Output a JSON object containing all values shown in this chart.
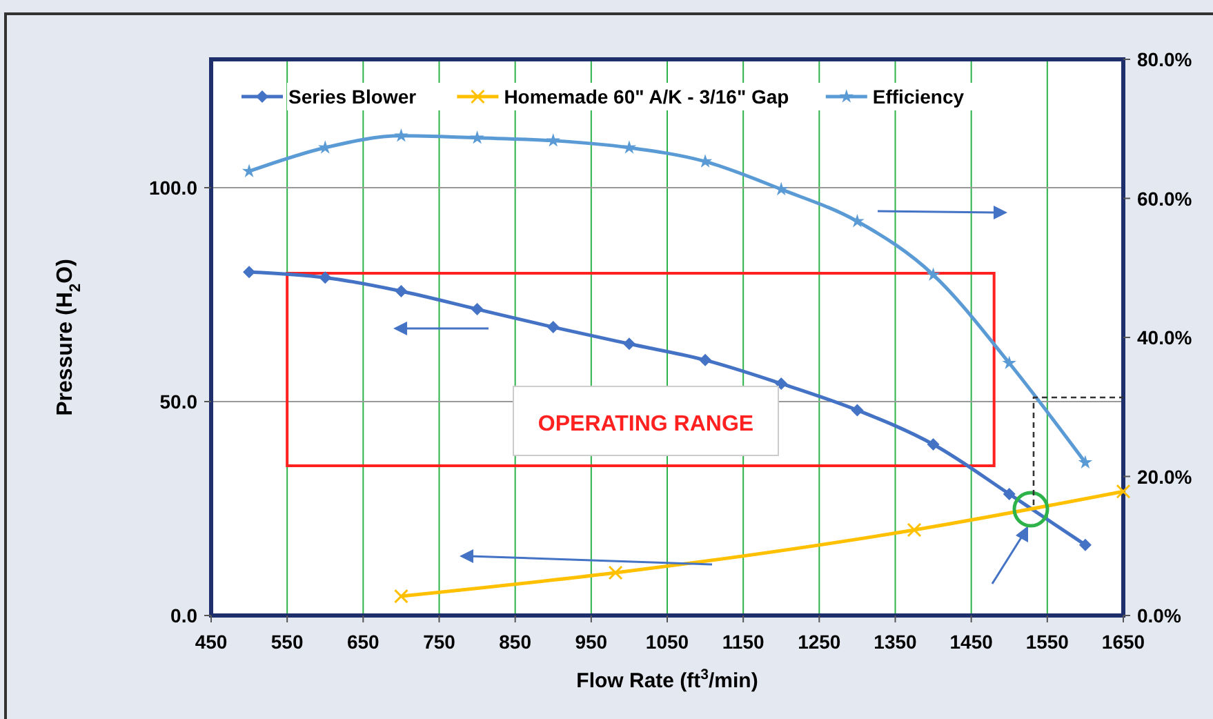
{
  "chart_data": {
    "type": "line",
    "xlabel": "Flow Rate (ft$^{3}$/min)",
    "ylabel": "Pressure (H$_{2}$O)",
    "xlim": [
      450,
      1650
    ],
    "xticks": [
      450,
      550,
      650,
      750,
      850,
      950,
      1050,
      1150,
      1250,
      1350,
      1450,
      1550,
      1650
    ],
    "ylim": [
      0,
      130
    ],
    "yticks": [
      {
        "value": 0,
        "label": "0.0"
      },
      {
        "value": 50,
        "label": "50.0"
      },
      {
        "value": 100,
        "label": "100.0"
      }
    ],
    "y2lim": [
      0,
      80
    ],
    "y2ticks": [
      {
        "value": 0,
        "label": "0.0%"
      },
      {
        "value": 20,
        "label": "20.0%"
      },
      {
        "value": 40,
        "label": "40.0%"
      },
      {
        "value": 60,
        "label": "60.0%"
      },
      {
        "value": 80,
        "label": "80.0%"
      }
    ],
    "grid": true,
    "legend": "top",
    "line_style": "solid",
    "annotations": [
      "OPERATING RANGE"
    ],
    "series": [
      {
        "name": "Series Blower",
        "color": "#4472c4",
        "marker": "diamond",
        "x": [
          500,
          600,
          700,
          800,
          900,
          1000,
          1100,
          1200,
          1300,
          1400,
          1500,
          1600
        ],
        "values": [
          80.3,
          79,
          75.8,
          71.6,
          67.4,
          63.5,
          59.7,
          54.2,
          48,
          40,
          28.4,
          16.5
        ]
      },
      {
        "name": "Homemade 60\" A/K - 3/16\" Gap",
        "color": "#ffc000",
        "marker": "cross",
        "x": [
          700,
          982,
          1375,
          1650
        ],
        "values": [
          4.5,
          10,
          20,
          29
        ]
      },
      {
        "name": "Efficiency",
        "color": "#5b9bd5",
        "marker": "star",
        "axis": "y2",
        "x": [
          500,
          600,
          700,
          800,
          900,
          1000,
          1100,
          1200,
          1300,
          1400,
          1500,
          1600
        ],
        "values": [
          63.9,
          67.3,
          69,
          68.7,
          68.3,
          67.3,
          65.3,
          61.3,
          56.7,
          49,
          36.3,
          22
        ]
      }
    ]
  }
}
